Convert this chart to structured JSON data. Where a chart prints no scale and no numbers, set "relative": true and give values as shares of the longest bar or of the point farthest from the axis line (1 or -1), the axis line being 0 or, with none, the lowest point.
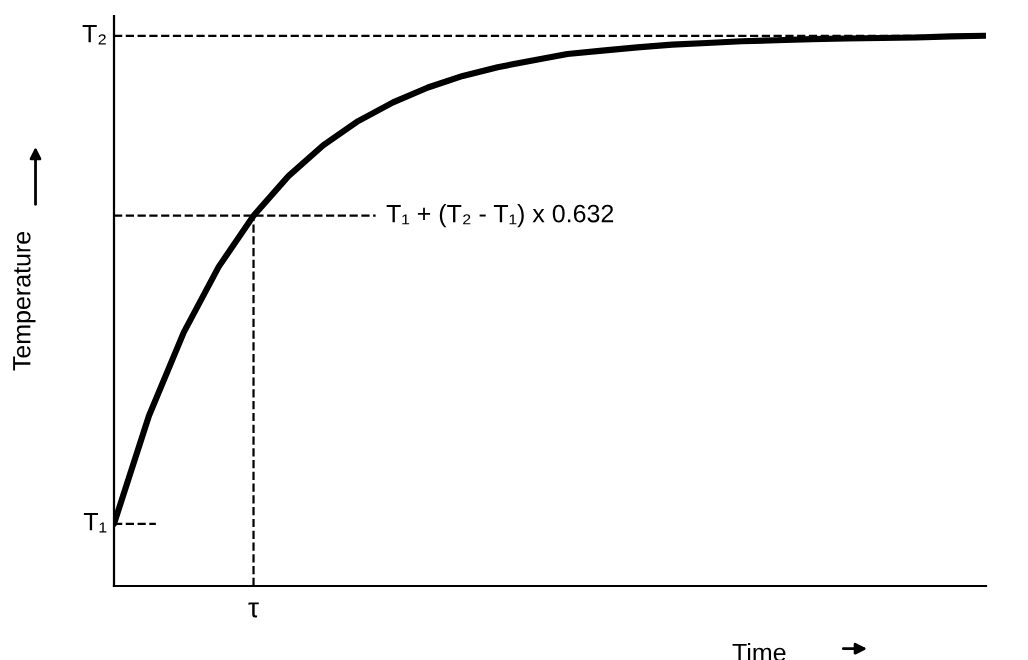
{
  "chart_data": {
    "type": "line",
    "relative": true,
    "xlabel": "Time",
    "ylabel": "Temperature",
    "categories": [
      null,
      null,
      null,
      null,
      null,
      null,
      null,
      null,
      null,
      null,
      null,
      null,
      null,
      null,
      null,
      null,
      null,
      null,
      null,
      null,
      null,
      null,
      null,
      null,
      null,
      null
    ],
    "series": [
      {
        "color": "#000000",
        "values": [
          0.113,
          0.309,
          0.461,
          0.58,
          0.673,
          0.745,
          0.801,
          0.845,
          0.879,
          0.906,
          0.927,
          0.943,
          0.955,
          0.967,
          0.973,
          0.979,
          0.984,
          0.987,
          0.99,
          0.992,
          0.994,
          0.995,
          0.996,
          0.997,
          0.999,
          1.0
        ]
      }
    ],
    "ref_lines": [
      {
        "axis": "y",
        "value": 1.0,
        "label": "T₂",
        "line_style": "dashed",
        "color": "#000000"
      },
      {
        "axis": "y",
        "value": 0.113,
        "label": "T₁",
        "line_style": "dashed",
        "color": "#000000"
      },
      {
        "axis": "y",
        "value": 0.673,
        "label": "T₁ + (T₂ - T₁) x 0.632",
        "line_style": "dashed",
        "color": "#000000"
      }
    ],
    "annotations": [
      "τ"
    ],
    "legend": false,
    "marker": "none",
    "line_style": "solid"
  }
}
